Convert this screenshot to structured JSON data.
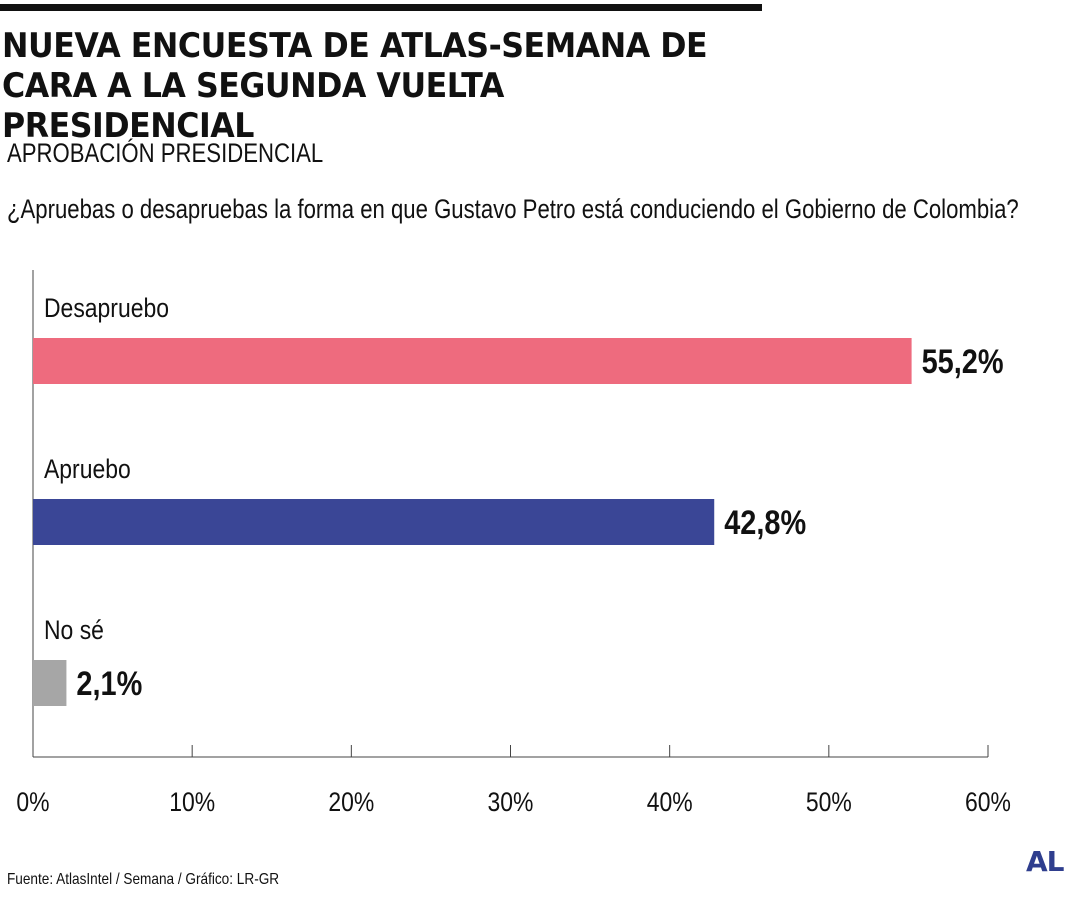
{
  "header": {
    "title": "NUEVA ENCUESTA DE ATLAS-SEMANA DE CARA A LA SEGUNDA VUELTA PRESIDENCIAL",
    "subtitle": "APROBACIÓN PRESIDENCIAL",
    "question": "¿Apruebas o desapruebas la forma en que Gustavo Petro está conduciendo el Gobierno de Colombia?"
  },
  "footer": {
    "source": "Fuente: AtlasIntel / Semana / Gráfico: LR-GR",
    "logo": "AL"
  },
  "chart_data": {
    "type": "bar",
    "orientation": "horizontal",
    "categories": [
      "Desapruebo",
      "Apruebo",
      "No sé"
    ],
    "values": [
      55.2,
      42.8,
      2.1
    ],
    "value_labels": [
      "55,2%",
      "42,8%",
      "2,1%"
    ],
    "colors": [
      "#ee6b7e",
      "#3a4696",
      "#a6a6a6"
    ],
    "xlim": [
      0,
      60
    ],
    "x_ticks": [
      0,
      10,
      20,
      30,
      40,
      50,
      60
    ],
    "x_tick_labels": [
      "0%",
      "10%",
      "20%",
      "30%",
      "40%",
      "50%",
      "60%"
    ],
    "grid": false,
    "legend": "none"
  }
}
